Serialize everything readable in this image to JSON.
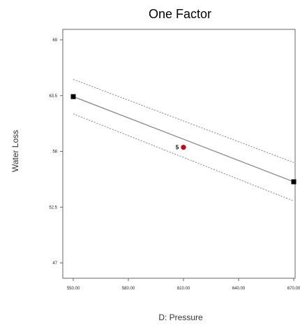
{
  "chart_data": {
    "type": "line",
    "title": "One Factor",
    "xlabel": "D: Pressure",
    "ylabel": "Water Loss",
    "xlim": [
      550,
      670
    ],
    "ylim": [
      47,
      69
    ],
    "x_ticks": [
      "550.00",
      "580.00",
      "610.00",
      "640.00",
      "670.00"
    ],
    "y_ticks": [
      "47",
      "52.5",
      "58",
      "63.5",
      "69"
    ],
    "series": [
      {
        "style": "solid",
        "x": [
          550,
          670
        ],
        "y": [
          63.4,
          55.0
        ]
      },
      {
        "style": "dashed",
        "x": [
          550,
          670
        ],
        "y": [
          65.1,
          56.9
        ]
      },
      {
        "style": "dashed",
        "x": [
          550,
          670
        ],
        "y": [
          61.7,
          53.1
        ]
      }
    ],
    "points": [
      {
        "x": 550,
        "y": 63.4,
        "marker": "square",
        "label": ""
      },
      {
        "x": 670,
        "y": 55.0,
        "marker": "square",
        "label": ""
      },
      {
        "x": 610,
        "y": 58.4,
        "marker": "circle",
        "label": "5"
      }
    ],
    "colors": {
      "line": "#808080",
      "band": "#808080",
      "square_marker": "#000000",
      "center_marker": "#cc0000"
    },
    "grid": false,
    "legend": "none"
  }
}
